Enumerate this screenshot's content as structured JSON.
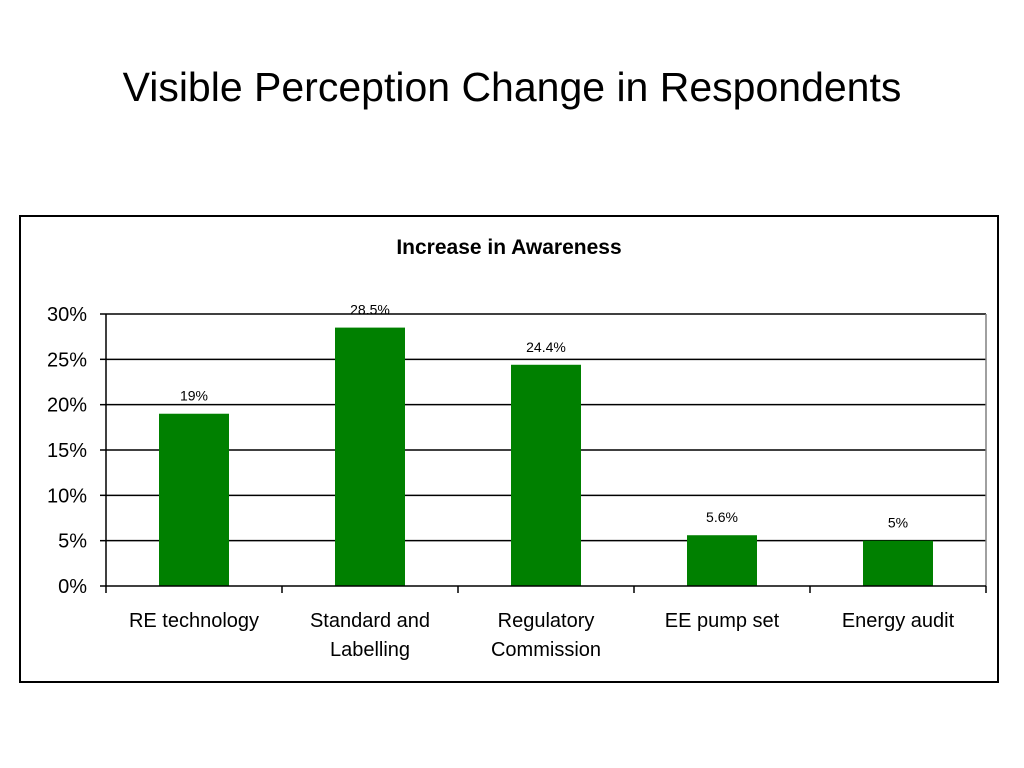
{
  "slide": {
    "title": "Visible Perception Change in Respondents"
  },
  "colors": {
    "bar": "#008000",
    "gridline": "#000000",
    "axis": "#000000"
  },
  "chart_data": {
    "type": "bar",
    "title": "Increase in Awareness",
    "xlabel": "",
    "ylabel": "",
    "categories": [
      [
        "RE technology"
      ],
      [
        "Standard and",
        "Labelling"
      ],
      [
        "Regulatory",
        "Commission"
      ],
      [
        "EE pump set"
      ],
      [
        "Energy audit"
      ]
    ],
    "values": [
      19,
      28.5,
      24.4,
      5.6,
      5
    ],
    "data_labels": [
      "19%",
      "28.5%",
      "24.4%",
      "5.6%",
      "5%"
    ],
    "ylim": [
      0,
      30
    ],
    "yticks": [
      0,
      5,
      10,
      15,
      20,
      25,
      30
    ],
    "ytick_labels": [
      "0%",
      "5%",
      "10%",
      "15%",
      "20%",
      "25%",
      "30%"
    ],
    "grid": true,
    "legend": "none"
  }
}
